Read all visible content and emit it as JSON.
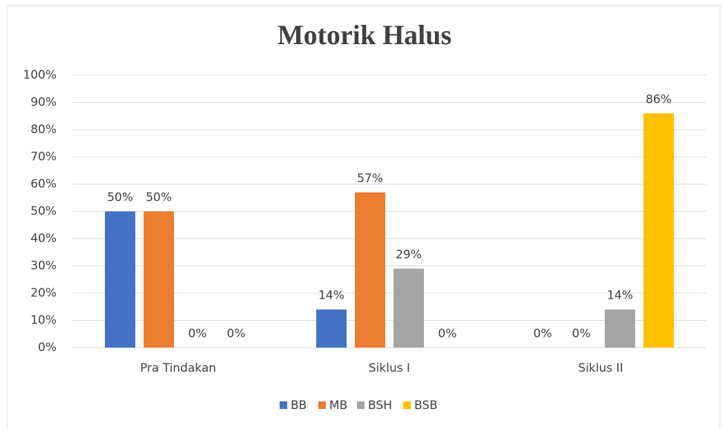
{
  "chart_data": {
    "type": "bar",
    "title": "Motorik Halus",
    "categories": [
      "Pra Tindakan",
      "Siklus I",
      "Siklus II"
    ],
    "series": [
      {
        "name": "BB",
        "color": "#4472c4",
        "values": [
          50,
          14,
          0
        ],
        "value_labels": [
          "50%",
          "14%",
          "0%"
        ]
      },
      {
        "name": "MB",
        "color": "#ed7d31",
        "values": [
          50,
          57,
          0
        ],
        "value_labels": [
          "50%",
          "57%",
          "0%"
        ]
      },
      {
        "name": "BSH",
        "color": "#a5a5a5",
        "values": [
          0,
          29,
          14
        ],
        "value_labels": [
          "0%",
          "29%",
          "14%"
        ]
      },
      {
        "name": "BSB",
        "color": "#ffc000",
        "values": [
          0,
          0,
          86
        ],
        "value_labels": [
          "0%",
          "0%",
          "86%"
        ]
      }
    ],
    "ylim": [
      0,
      100
    ],
    "yticks": [
      {
        "value": 0,
        "label": "0%"
      },
      {
        "value": 10,
        "label": "10%"
      },
      {
        "value": 20,
        "label": "20%"
      },
      {
        "value": 30,
        "label": "30%"
      },
      {
        "value": 40,
        "label": "40%"
      },
      {
        "value": 50,
        "label": "50%"
      },
      {
        "value": 60,
        "label": "60%"
      },
      {
        "value": 70,
        "label": "70%"
      },
      {
        "value": 80,
        "label": "80%"
      },
      {
        "value": 90,
        "label": "90%"
      },
      {
        "value": 100,
        "label": "100%"
      }
    ],
    "grid": true,
    "legend": "bottom"
  }
}
